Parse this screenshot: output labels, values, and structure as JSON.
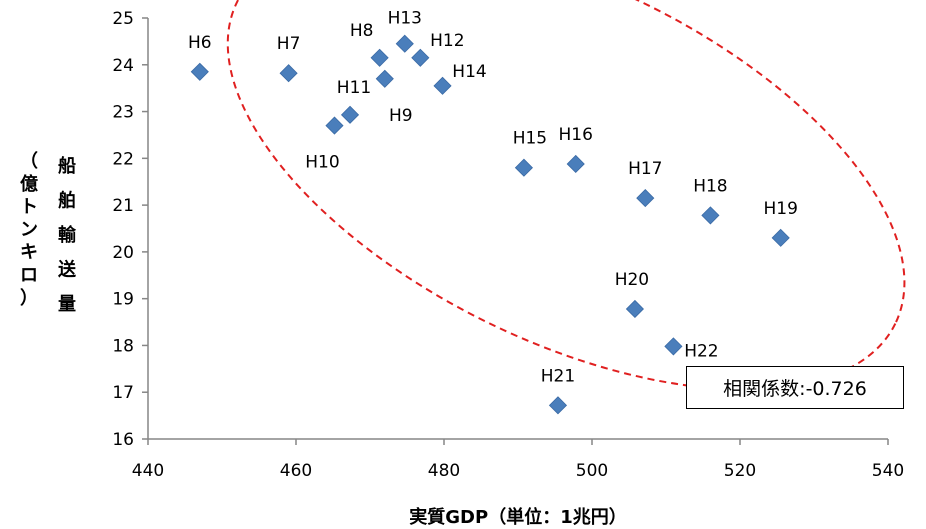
{
  "chart_data": {
    "type": "scatter",
    "title": "",
    "xlabel": "実質GDP（単位：1兆円）",
    "ylabel_main": "船舶輸送量",
    "ylabel_unit": "（億トンキロ）",
    "xlim": [
      440,
      540
    ],
    "ylim": [
      16,
      25
    ],
    "xticks": [
      440,
      460,
      480,
      500,
      520,
      540
    ],
    "yticks": [
      16,
      17,
      18,
      19,
      20,
      21,
      22,
      23,
      24,
      25
    ],
    "grid": false,
    "marker": "diamond",
    "marker_color": "#4a7ebb",
    "ellipse_color": "#e02020",
    "points": [
      {
        "label": "H6",
        "x": 447.0,
        "y": 23.85
      },
      {
        "label": "H7",
        "x": 459.0,
        "y": 23.82
      },
      {
        "label": "H8",
        "x": 471.3,
        "y": 24.15
      },
      {
        "label": "H9",
        "x": 472.0,
        "y": 23.7
      },
      {
        "label": "H10",
        "x": 465.2,
        "y": 22.7
      },
      {
        "label": "H11",
        "x": 467.3,
        "y": 22.93
      },
      {
        "label": "H12",
        "x": 476.8,
        "y": 24.15
      },
      {
        "label": "H13",
        "x": 474.7,
        "y": 24.45
      },
      {
        "label": "H14",
        "x": 479.8,
        "y": 23.55
      },
      {
        "label": "H15",
        "x": 490.8,
        "y": 21.8
      },
      {
        "label": "H16",
        "x": 497.8,
        "y": 21.88
      },
      {
        "label": "H17",
        "x": 507.2,
        "y": 21.15
      },
      {
        "label": "H18",
        "x": 516.0,
        "y": 20.78
      },
      {
        "label": "H19",
        "x": 525.5,
        "y": 20.3
      },
      {
        "label": "H20",
        "x": 505.8,
        "y": 18.78
      },
      {
        "label": "H21",
        "x": 495.4,
        "y": 16.72
      },
      {
        "label": "H22",
        "x": 511.0,
        "y": 17.98
      }
    ],
    "annotation": "相関係数:-0.726"
  }
}
